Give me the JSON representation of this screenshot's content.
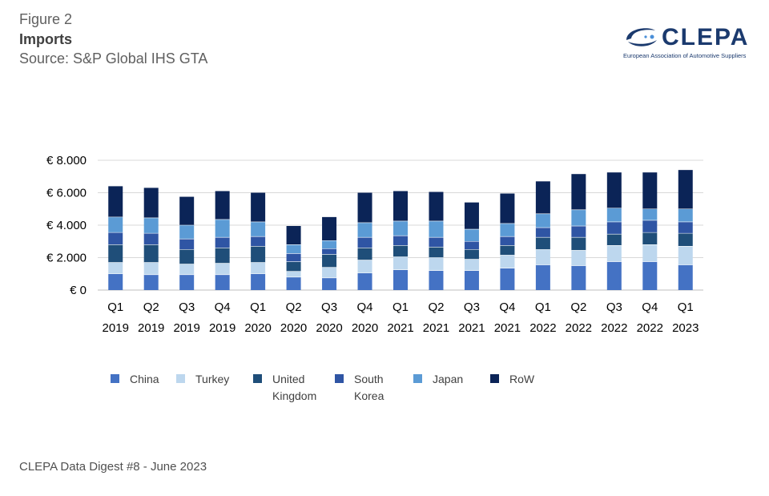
{
  "header": {
    "figure_label": "Figure 2",
    "title": "Imports",
    "source": "Source: S&P Global IHS GTA"
  },
  "logo": {
    "wordmark": "CLEPA",
    "subtitle": "European Association of Automotive Suppliers",
    "icon": "clepa-swoosh-icon",
    "color": "#1b3a6e"
  },
  "footer": "CLEPA Data Digest #8 - June 2023",
  "chart_data": {
    "type": "bar",
    "stacked": true,
    "title": "",
    "xlabel": "",
    "ylabel": "",
    "ylim": [
      0,
      8000
    ],
    "yticks": [
      0,
      2000,
      4000,
      6000,
      8000
    ],
    "ytick_labels": [
      "€ 0",
      "€ 2.000",
      "€ 4.000",
      "€ 6.000",
      "€ 8.000"
    ],
    "grid": true,
    "legend_position": "bottom",
    "categories": [
      [
        "Q1",
        "2019"
      ],
      [
        "Q2",
        "2019"
      ],
      [
        "Q3",
        "2019"
      ],
      [
        "Q4",
        "2019"
      ],
      [
        "Q1",
        "2020"
      ],
      [
        "Q2",
        "2020"
      ],
      [
        "Q3",
        "2020"
      ],
      [
        "Q4",
        "2020"
      ],
      [
        "Q1",
        "2021"
      ],
      [
        "Q2",
        "2021"
      ],
      [
        "Q3",
        "2021"
      ],
      [
        "Q4",
        "2021"
      ],
      [
        "Q1",
        "2022"
      ],
      [
        "Q2",
        "2022"
      ],
      [
        "Q3",
        "2022"
      ],
      [
        "Q4",
        "2022"
      ],
      [
        "Q1",
        "2023"
      ]
    ],
    "series": [
      {
        "name": "China",
        "label_lines": [
          "China"
        ],
        "color": "#4472c4",
        "values": [
          1000,
          950,
          950,
          950,
          1000,
          800,
          750,
          1050,
          1250,
          1200,
          1200,
          1350,
          1550,
          1500,
          1750,
          1750,
          1550
        ]
      },
      {
        "name": "Turkey",
        "label_lines": [
          "Turkey"
        ],
        "color": "#bdd7ee",
        "values": [
          700,
          750,
          650,
          700,
          700,
          350,
          650,
          800,
          800,
          800,
          700,
          800,
          950,
          950,
          1000,
          1050,
          1150
        ]
      },
      {
        "name": "United Kingdom",
        "label_lines": [
          "United",
          "Kingdom"
        ],
        "color": "#1f4e79",
        "values": [
          1100,
          1100,
          900,
          950,
          1000,
          600,
          800,
          750,
          700,
          650,
          600,
          600,
          750,
          800,
          700,
          750,
          800
        ]
      },
      {
        "name": "South Korea",
        "label_lines": [
          "South",
          "Korea"
        ],
        "color": "#2f55a4",
        "values": [
          750,
          700,
          650,
          650,
          600,
          500,
          350,
          650,
          600,
          600,
          500,
          550,
          600,
          700,
          750,
          750,
          700
        ]
      },
      {
        "name": "Japan",
        "label_lines": [
          "Japan"
        ],
        "color": "#5b9bd5",
        "values": [
          950,
          950,
          850,
          1100,
          900,
          550,
          500,
          900,
          900,
          1000,
          750,
          800,
          850,
          1000,
          850,
          700,
          800
        ]
      },
      {
        "name": "RoW",
        "label_lines": [
          "RoW"
        ],
        "color": "#0b2457",
        "values": [
          1900,
          1850,
          1750,
          1750,
          1800,
          1150,
          1450,
          1850,
          1850,
          1800,
          1650,
          1850,
          2000,
          2200,
          2200,
          2250,
          2400
        ]
      }
    ]
  }
}
